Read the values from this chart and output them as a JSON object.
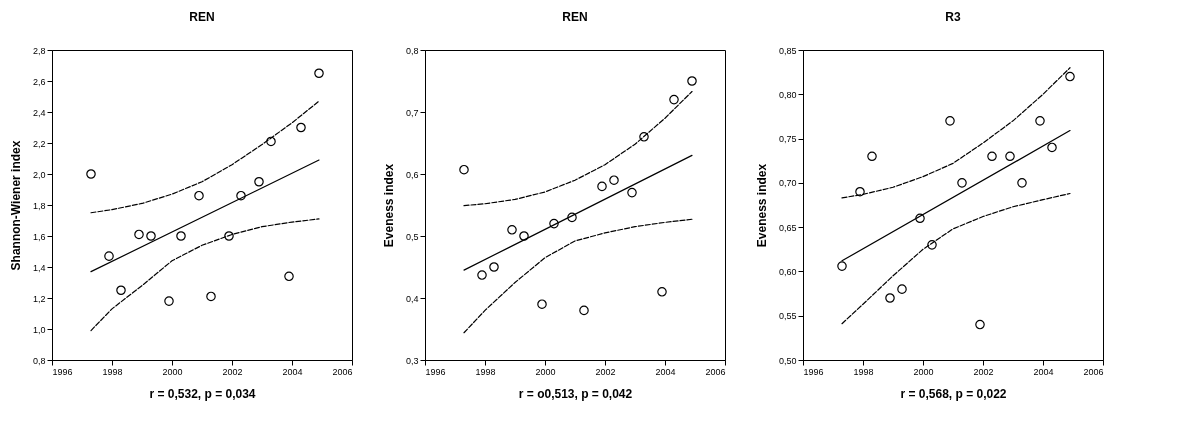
{
  "chart_data": [
    {
      "type": "scatter",
      "title": "REN",
      "xlabel": "r = 0,532, p = 0,034",
      "ylabel": "Shannon-Wiener index",
      "marker": "circle",
      "grid": false,
      "xlim": [
        1996,
        2006
      ],
      "xticks": [
        1996,
        1998,
        2000,
        2002,
        2004,
        2006
      ],
      "ylim": [
        0.8,
        2.8
      ],
      "yticks": [
        {
          "value": 0.8,
          "label": "0,8"
        },
        {
          "value": 1.0,
          "label": "1,0"
        },
        {
          "value": 1.2,
          "label": "1,2"
        },
        {
          "value": 1.4,
          "label": "1,4"
        },
        {
          "value": 1.6,
          "label": "1,6"
        },
        {
          "value": 1.8,
          "label": "1,8"
        },
        {
          "value": 2.0,
          "label": "2,0"
        },
        {
          "value": 2.2,
          "label": "2,2"
        },
        {
          "value": 2.4,
          "label": "2,4"
        },
        {
          "value": 2.6,
          "label": "2,6"
        },
        {
          "value": 2.8,
          "label": "2,8"
        }
      ],
      "series": [
        {
          "type": "scatter",
          "color": "#000000",
          "x": [
            1997.3,
            1997.9,
            1998.3,
            1998.9,
            1999.3,
            1999.9,
            2000.3,
            2000.9,
            2001.3,
            2001.9,
            2002.3,
            2002.9,
            2003.3,
            2003.9,
            2004.3,
            2004.9
          ],
          "values": [
            2.0,
            1.47,
            1.25,
            1.61,
            1.6,
            1.18,
            1.6,
            1.86,
            1.21,
            1.6,
            1.86,
            1.95,
            2.21,
            1.34,
            2.3,
            2.65
          ]
        },
        {
          "type": "line",
          "color": "#000000",
          "line_style": "solid",
          "marker": "none",
          "x": [
            1997.3,
            2004.9
          ],
          "values": [
            1.37,
            2.09
          ]
        },
        {
          "type": "line",
          "color": "#000000",
          "line_style": "dashed",
          "marker": "none",
          "x": [
            1997.3,
            1998,
            1999,
            2000,
            2001,
            2002,
            2003,
            2004,
            2004.9
          ],
          "values": [
            1.75,
            1.77,
            1.81,
            1.87,
            1.95,
            2.06,
            2.19,
            2.33,
            2.47
          ]
        },
        {
          "type": "line",
          "color": "#000000",
          "line_style": "dashed",
          "marker": "none",
          "x": [
            1997.3,
            1998,
            1999,
            2000,
            2001,
            2002,
            2003,
            2004,
            2004.9
          ],
          "values": [
            0.99,
            1.13,
            1.28,
            1.44,
            1.54,
            1.61,
            1.66,
            1.69,
            1.71
          ]
        }
      ]
    },
    {
      "type": "scatter",
      "title": "REN",
      "xlabel": "r = o0,513, p = 0,042",
      "ylabel": "Eveness index",
      "marker": "circle",
      "grid": false,
      "xlim": [
        1996,
        2006
      ],
      "xticks": [
        1996,
        1998,
        2000,
        2002,
        2004,
        2006
      ],
      "ylim": [
        0.3,
        0.8
      ],
      "yticks": [
        {
          "value": 0.3,
          "label": "0,3"
        },
        {
          "value": 0.4,
          "label": "0,4"
        },
        {
          "value": 0.5,
          "label": "0,5"
        },
        {
          "value": 0.6,
          "label": "0,6"
        },
        {
          "value": 0.7,
          "label": "0,7"
        },
        {
          "value": 0.8,
          "label": "0,8"
        }
      ],
      "series": [
        {
          "type": "scatter",
          "color": "#000000",
          "x": [
            1997.3,
            1997.9,
            1998.3,
            1998.9,
            1999.3,
            1999.9,
            2000.3,
            2000.9,
            2001.3,
            2001.9,
            2002.3,
            2002.9,
            2003.3,
            2003.9,
            2004.3,
            2004.9
          ],
          "values": [
            0.607,
            0.437,
            0.45,
            0.51,
            0.5,
            0.39,
            0.52,
            0.53,
            0.38,
            0.58,
            0.59,
            0.57,
            0.66,
            0.41,
            0.72,
            0.75
          ]
        },
        {
          "type": "line",
          "color": "#000000",
          "line_style": "solid",
          "marker": "none",
          "x": [
            1997.3,
            2004.9
          ],
          "values": [
            0.445,
            0.63
          ]
        },
        {
          "type": "line",
          "color": "#000000",
          "line_style": "dashed",
          "marker": "none",
          "x": [
            1997.3,
            1998,
            1999,
            2000,
            2001,
            2002,
            2003,
            2004,
            2004.9
          ],
          "values": [
            0.549,
            0.552,
            0.559,
            0.571,
            0.59,
            0.615,
            0.648,
            0.69,
            0.733
          ]
        },
        {
          "type": "line",
          "color": "#000000",
          "line_style": "dashed",
          "marker": "none",
          "x": [
            1997.3,
            1998,
            1999,
            2000,
            2001,
            2002,
            2003,
            2004,
            2004.9
          ],
          "values": [
            0.344,
            0.38,
            0.425,
            0.465,
            0.492,
            0.505,
            0.515,
            0.522,
            0.527
          ]
        }
      ]
    },
    {
      "type": "scatter",
      "title": "R3",
      "xlabel": "r = 0,568, p = 0,022",
      "ylabel": "Eveness index",
      "marker": "circle",
      "grid": false,
      "xlim": [
        1996,
        2006
      ],
      "xticks": [
        1996,
        1998,
        2000,
        2002,
        2004,
        2006
      ],
      "ylim": [
        0.5,
        0.85
      ],
      "yticks": [
        {
          "value": 0.5,
          "label": "0,50"
        },
        {
          "value": 0.55,
          "label": "0,55"
        },
        {
          "value": 0.6,
          "label": "0,60"
        },
        {
          "value": 0.65,
          "label": "0,65"
        },
        {
          "value": 0.7,
          "label": "0,70"
        },
        {
          "value": 0.75,
          "label": "0,75"
        },
        {
          "value": 0.8,
          "label": "0,80"
        },
        {
          "value": 0.85,
          "label": "0,85"
        }
      ],
      "series": [
        {
          "type": "scatter",
          "color": "#000000",
          "x": [
            1997.3,
            1997.9,
            1998.3,
            1998.9,
            1999.3,
            1999.9,
            2000.3,
            2000.9,
            2001.3,
            2001.9,
            2002.3,
            2002.9,
            2003.3,
            2003.9,
            2004.3,
            2004.9
          ],
          "values": [
            0.606,
            0.69,
            0.73,
            0.57,
            0.58,
            0.66,
            0.63,
            0.77,
            0.7,
            0.54,
            0.73,
            0.73,
            0.7,
            0.77,
            0.74,
            0.82
          ]
        },
        {
          "type": "line",
          "color": "#000000",
          "line_style": "solid",
          "marker": "none",
          "x": [
            1997.3,
            2004.9
          ],
          "values": [
            0.612,
            0.759
          ]
        },
        {
          "type": "line",
          "color": "#000000",
          "line_style": "dashed",
          "marker": "none",
          "x": [
            1997.3,
            1998,
            1999,
            2000,
            2001,
            2002,
            2003,
            2004,
            2004.9
          ],
          "values": [
            0.683,
            0.687,
            0.695,
            0.707,
            0.722,
            0.745,
            0.77,
            0.8,
            0.83
          ]
        },
        {
          "type": "line",
          "color": "#000000",
          "line_style": "dashed",
          "marker": "none",
          "x": [
            1997.3,
            1998,
            1999,
            2000,
            2001,
            2002,
            2003,
            2004,
            2004.9
          ],
          "values": [
            0.541,
            0.563,
            0.595,
            0.625,
            0.648,
            0.662,
            0.673,
            0.681,
            0.688
          ]
        }
      ]
    }
  ]
}
